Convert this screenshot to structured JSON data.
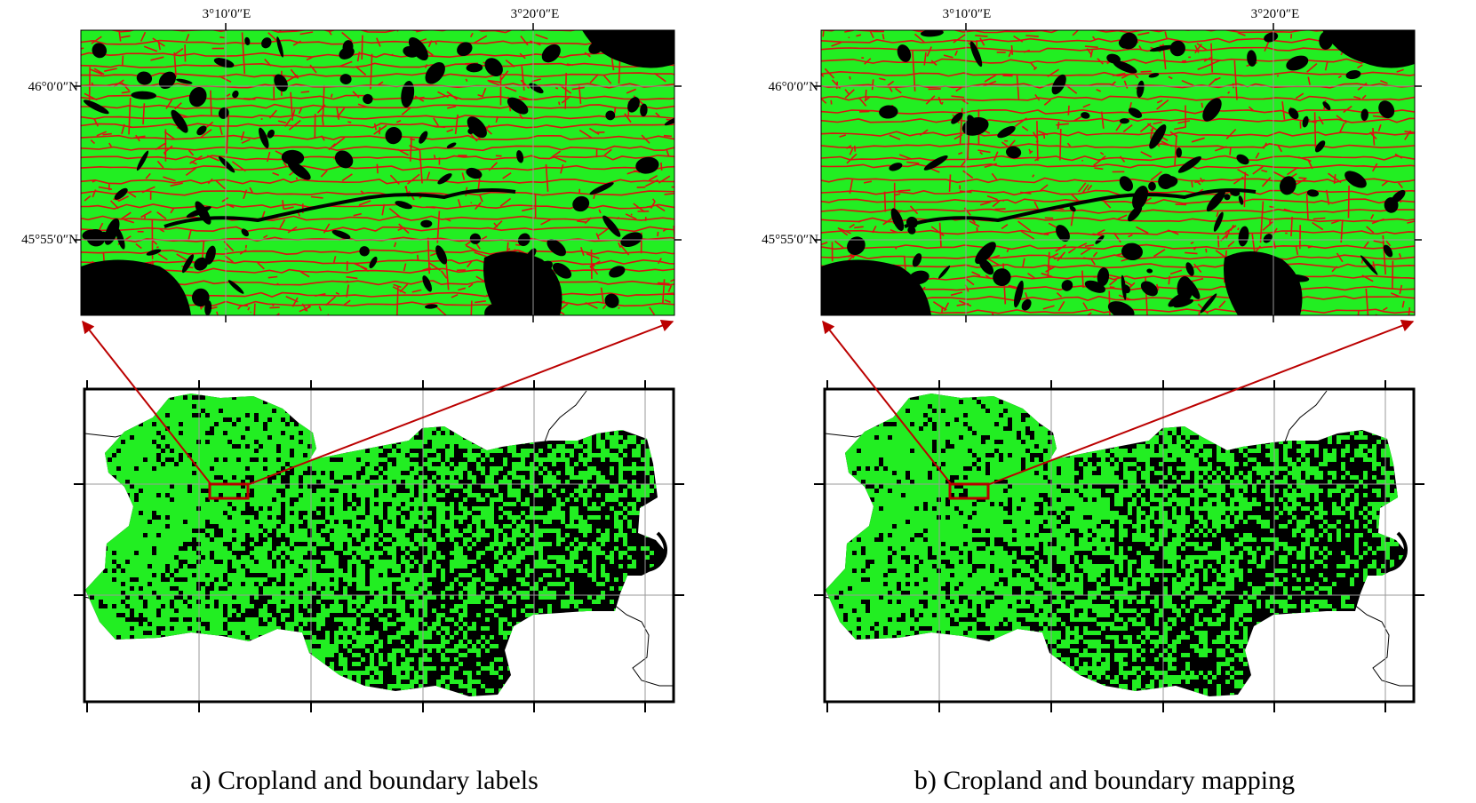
{
  "colors": {
    "cropland": "#22ee22",
    "boundary": "#dd1111",
    "background_land": "#000000",
    "grid": "#999999",
    "arrow": "#bb0000",
    "admin_line": "#000000"
  },
  "panels": [
    {
      "id": "a",
      "caption": "a) Cropland and boundary labels",
      "lon_labels": [
        "3°10′0″E",
        "3°20′0″E"
      ],
      "lat_labels": [
        "46°0′0″N",
        "45°55′0″N"
      ],
      "seed": 11
    },
    {
      "id": "b",
      "caption": "b) Cropland and boundary mapping",
      "lon_labels": [
        "3°10′0″E",
        "3°20′0″E"
      ],
      "lat_labels": [
        "46°0′0″N",
        "45°55′0″N"
      ],
      "seed": 37
    }
  ]
}
